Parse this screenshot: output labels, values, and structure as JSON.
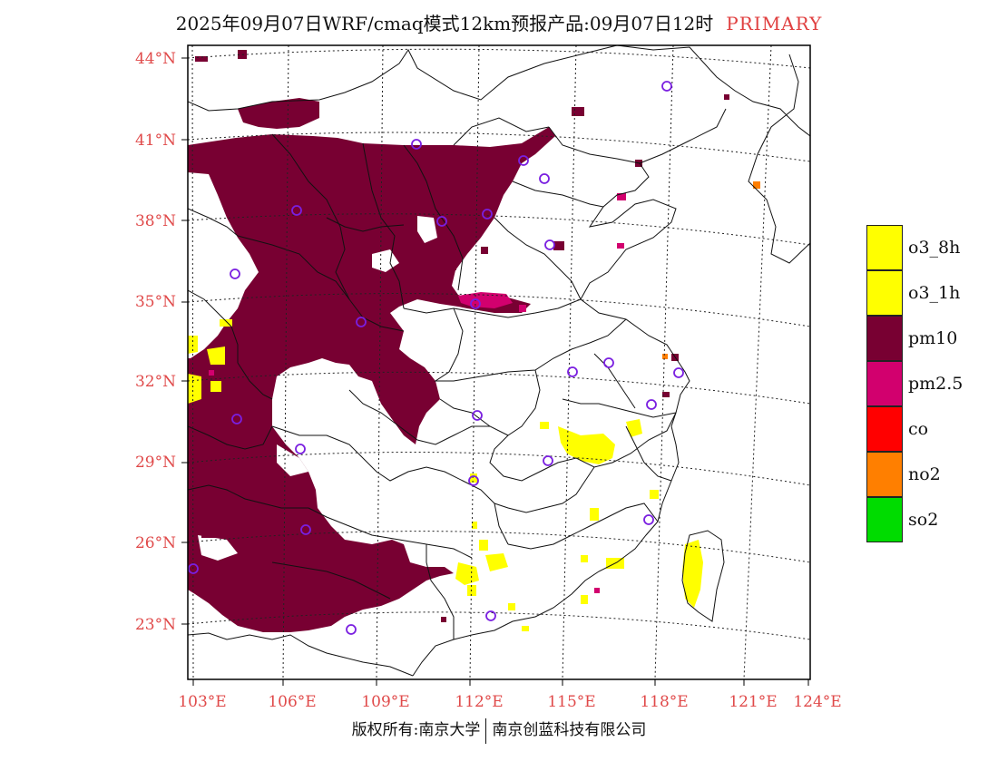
{
  "header": {
    "title": "2025年09月07日WRF/cmaq模式12km预报产品:09月07日12时",
    "tag": "PRIMARY"
  },
  "map": {
    "latitude_labels": [
      "44°N",
      "41°N",
      "38°N",
      "35°N",
      "32°N",
      "29°N",
      "26°N",
      "23°N"
    ],
    "longitude_labels": [
      "103°E",
      "106°E",
      "109°E",
      "112°E",
      "115°E",
      "118°E",
      "121°E",
      "124°E"
    ],
    "primary_pollutant_field": {
      "pm10": "widespread over western and central China (Sichuan, Chongqing, Shaanxi, Shanxi, Hebei, Yunnan, Guangxi, Guizhou)",
      "o3": "scattered patches in Jiangxi, Guangdong, Fujian, Hunan, Taiwan",
      "pm2.5": "small patches in Henan and Shandong",
      "no2": "isolated cells near the Bohai coast"
    },
    "station_marker_color": "#7a1fe0"
  },
  "legend": {
    "items": [
      {
        "label": "o3_8h",
        "color": "#ffff00"
      },
      {
        "label": "o3_1h",
        "color": "#ffff00"
      },
      {
        "label": "pm10",
        "color": "#780032"
      },
      {
        "label": "pm2.5",
        "color": "#d2006e"
      },
      {
        "label": "co",
        "color": "#ff0000"
      },
      {
        "label": "no2",
        "color": "#ff7f00"
      },
      {
        "label": "so2",
        "color": "#00dc00"
      }
    ]
  },
  "footer": {
    "left": "版权所有:南京大学",
    "right": "南京创蓝科技有限公司"
  },
  "colors": {
    "axis_label": "#e04a4a",
    "title_tag": "#e04040"
  }
}
